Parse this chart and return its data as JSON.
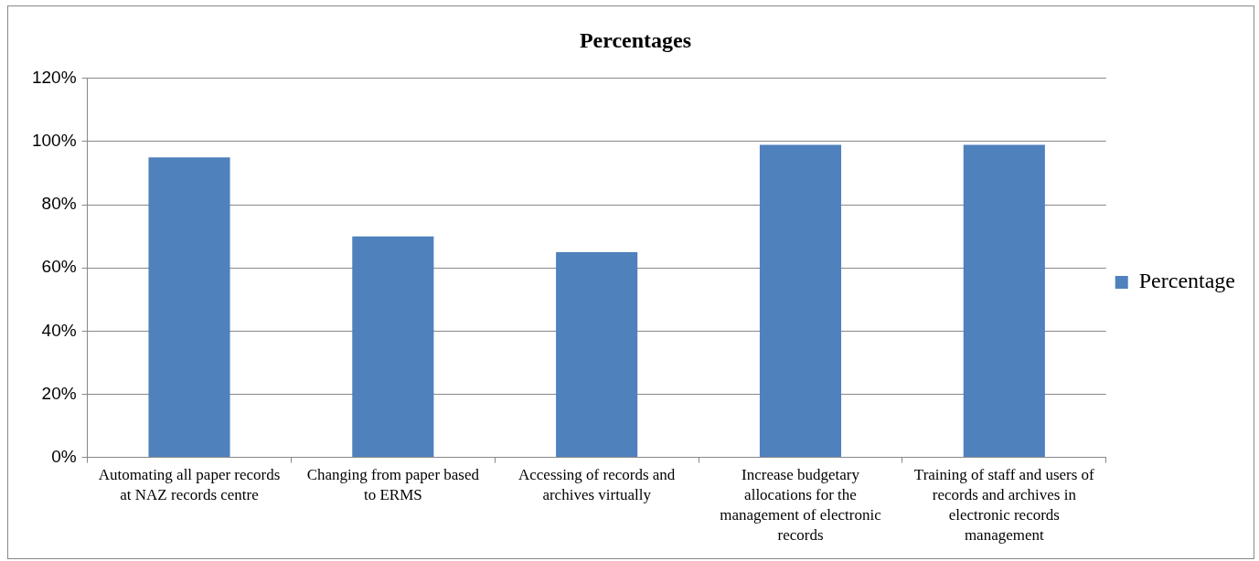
{
  "chart_data": {
    "type": "bar",
    "title": "Percentages",
    "categories": [
      "Automating all paper records at NAZ records centre",
      "Changing from paper based to ERMS",
      "Accessing of records and archives virtually",
      "Increase budgetary allocations for the management of electronic records",
      "Training of staff and users of records and archives in electronic records management"
    ],
    "series": [
      {
        "name": "Percentage",
        "color": "#4f81bd",
        "values": [
          95,
          70,
          65,
          99,
          99
        ]
      }
    ],
    "ylim": [
      0,
      120
    ],
    "yticks": [
      {
        "value": 0,
        "label": "0%"
      },
      {
        "value": 20,
        "label": "20%"
      },
      {
        "value": 40,
        "label": "40%"
      },
      {
        "value": 60,
        "label": "60%"
      },
      {
        "value": 80,
        "label": "80%"
      },
      {
        "value": 100,
        "label": "100%"
      },
      {
        "value": 120,
        "label": "120%"
      }
    ],
    "grid": "y",
    "legend": "right"
  }
}
